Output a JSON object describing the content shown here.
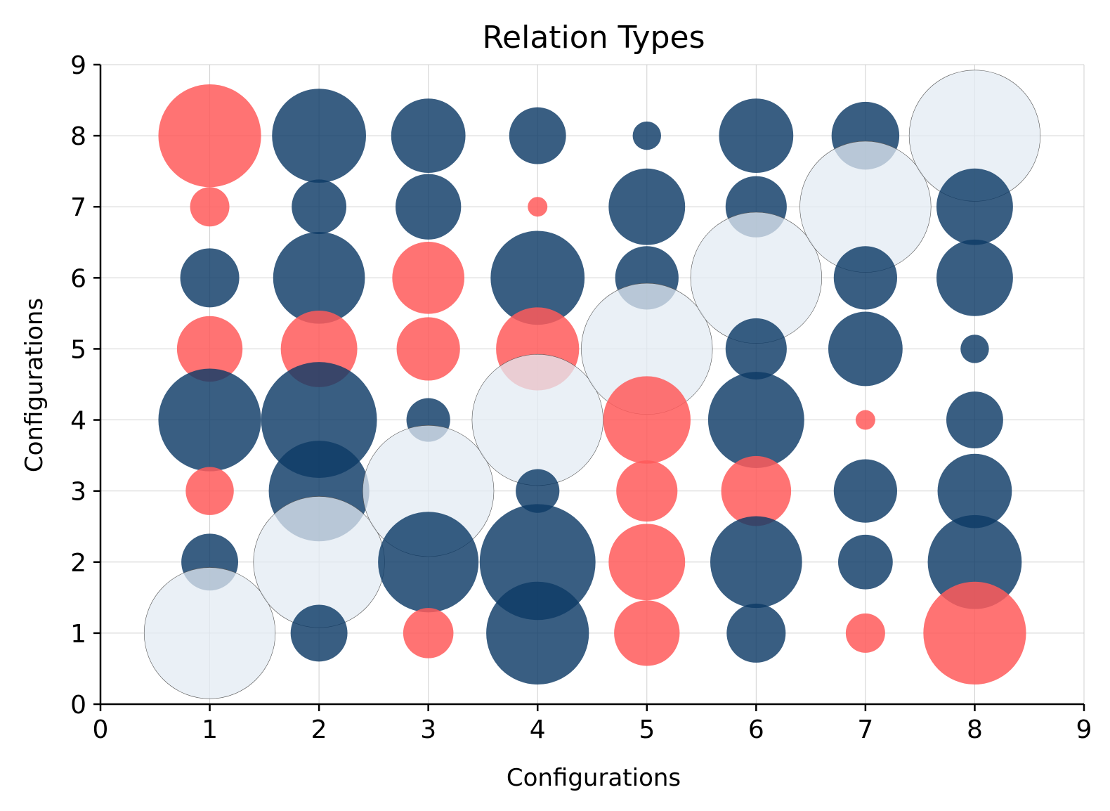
{
  "chart_data": {
    "type": "scatter",
    "subtype": "bubble",
    "title": "Relation Types",
    "xlabel": "Configurations",
    "ylabel": "Configurations",
    "xlim": [
      0,
      9
    ],
    "ylim": [
      0,
      9
    ],
    "xticks": [
      "0",
      "1",
      "2",
      "3",
      "4",
      "5",
      "6",
      "7",
      "8",
      "9"
    ],
    "yticks": [
      "0",
      "1",
      "2",
      "3",
      "4",
      "5",
      "6",
      "7",
      "8",
      "9"
    ],
    "grid": true,
    "bubble_size_unit": "radius in data units (x axis)",
    "colors": {
      "navy": "#0d3b66",
      "red": "#ff5a5a",
      "pale": "#e3ebf3"
    },
    "points": [
      {
        "x": 1,
        "y": 8,
        "color": "red",
        "size": 0.47
      },
      {
        "x": 1,
        "y": 7,
        "color": "red",
        "size": 0.18
      },
      {
        "x": 1,
        "y": 6,
        "color": "navy",
        "size": 0.27
      },
      {
        "x": 1,
        "y": 5,
        "color": "red",
        "size": 0.3
      },
      {
        "x": 1,
        "y": 4,
        "color": "navy",
        "size": 0.47
      },
      {
        "x": 1,
        "y": 3,
        "color": "red",
        "size": 0.22
      },
      {
        "x": 1,
        "y": 2,
        "color": "navy",
        "size": 0.26
      },
      {
        "x": 1,
        "y": 1,
        "color": "pale",
        "size": 0.6
      },
      {
        "x": 2,
        "y": 8,
        "color": "navy",
        "size": 0.43
      },
      {
        "x": 2,
        "y": 7,
        "color": "navy",
        "size": 0.25
      },
      {
        "x": 2,
        "y": 6,
        "color": "navy",
        "size": 0.42
      },
      {
        "x": 2,
        "y": 5,
        "color": "red",
        "size": 0.35
      },
      {
        "x": 2,
        "y": 4,
        "color": "navy",
        "size": 0.53
      },
      {
        "x": 2,
        "y": 3,
        "color": "navy",
        "size": 0.46
      },
      {
        "x": 2,
        "y": 2,
        "color": "pale",
        "size": 0.6
      },
      {
        "x": 2,
        "y": 1,
        "color": "navy",
        "size": 0.26
      },
      {
        "x": 3,
        "y": 8,
        "color": "navy",
        "size": 0.34
      },
      {
        "x": 3,
        "y": 7,
        "color": "navy",
        "size": 0.3
      },
      {
        "x": 3,
        "y": 6,
        "color": "red",
        "size": 0.33
      },
      {
        "x": 3,
        "y": 5,
        "color": "red",
        "size": 0.29
      },
      {
        "x": 3,
        "y": 4,
        "color": "navy",
        "size": 0.2
      },
      {
        "x": 3,
        "y": 3,
        "color": "pale",
        "size": 0.6
      },
      {
        "x": 3,
        "y": 2,
        "color": "navy",
        "size": 0.46
      },
      {
        "x": 3,
        "y": 1,
        "color": "red",
        "size": 0.23
      },
      {
        "x": 4,
        "y": 8,
        "color": "navy",
        "size": 0.26
      },
      {
        "x": 4,
        "y": 7,
        "color": "red",
        "size": 0.09
      },
      {
        "x": 4,
        "y": 6,
        "color": "navy",
        "size": 0.43
      },
      {
        "x": 4,
        "y": 5,
        "color": "red",
        "size": 0.38
      },
      {
        "x": 4,
        "y": 4,
        "color": "pale",
        "size": 0.6
      },
      {
        "x": 4,
        "y": 3,
        "color": "navy",
        "size": 0.2
      },
      {
        "x": 4,
        "y": 2,
        "color": "navy",
        "size": 0.53
      },
      {
        "x": 4,
        "y": 1,
        "color": "navy",
        "size": 0.47
      },
      {
        "x": 5,
        "y": 8,
        "color": "navy",
        "size": 0.13
      },
      {
        "x": 5,
        "y": 7,
        "color": "navy",
        "size": 0.35
      },
      {
        "x": 5,
        "y": 6,
        "color": "navy",
        "size": 0.29
      },
      {
        "x": 5,
        "y": 5,
        "color": "pale",
        "size": 0.6
      },
      {
        "x": 5,
        "y": 4,
        "color": "red",
        "size": 0.4
      },
      {
        "x": 5,
        "y": 3,
        "color": "red",
        "size": 0.28
      },
      {
        "x": 5,
        "y": 2,
        "color": "red",
        "size": 0.35
      },
      {
        "x": 5,
        "y": 1,
        "color": "red",
        "size": 0.3
      },
      {
        "x": 6,
        "y": 8,
        "color": "navy",
        "size": 0.34
      },
      {
        "x": 6,
        "y": 7,
        "color": "navy",
        "size": 0.28
      },
      {
        "x": 6,
        "y": 6,
        "color": "pale",
        "size": 0.6
      },
      {
        "x": 6,
        "y": 5,
        "color": "navy",
        "size": 0.28
      },
      {
        "x": 6,
        "y": 4,
        "color": "navy",
        "size": 0.44
      },
      {
        "x": 6,
        "y": 3,
        "color": "red",
        "size": 0.32
      },
      {
        "x": 6,
        "y": 2,
        "color": "navy",
        "size": 0.42
      },
      {
        "x": 6,
        "y": 1,
        "color": "navy",
        "size": 0.27
      },
      {
        "x": 7,
        "y": 8,
        "color": "navy",
        "size": 0.31
      },
      {
        "x": 7,
        "y": 7,
        "color": "pale",
        "size": 0.6
      },
      {
        "x": 7,
        "y": 6,
        "color": "navy",
        "size": 0.29
      },
      {
        "x": 7,
        "y": 5,
        "color": "navy",
        "size": 0.34
      },
      {
        "x": 7,
        "y": 4,
        "color": "red",
        "size": 0.09
      },
      {
        "x": 7,
        "y": 3,
        "color": "navy",
        "size": 0.29
      },
      {
        "x": 7,
        "y": 2,
        "color": "navy",
        "size": 0.25
      },
      {
        "x": 7,
        "y": 1,
        "color": "red",
        "size": 0.18
      },
      {
        "x": 8,
        "y": 8,
        "color": "pale",
        "size": 0.6
      },
      {
        "x": 8,
        "y": 7,
        "color": "navy",
        "size": 0.35
      },
      {
        "x": 8,
        "y": 6,
        "color": "navy",
        "size": 0.35
      },
      {
        "x": 8,
        "y": 5,
        "color": "navy",
        "size": 0.13
      },
      {
        "x": 8,
        "y": 4,
        "color": "navy",
        "size": 0.26
      },
      {
        "x": 8,
        "y": 3,
        "color": "navy",
        "size": 0.34
      },
      {
        "x": 8,
        "y": 2,
        "color": "navy",
        "size": 0.43
      },
      {
        "x": 8,
        "y": 1,
        "color": "red",
        "size": 0.47
      }
    ]
  }
}
